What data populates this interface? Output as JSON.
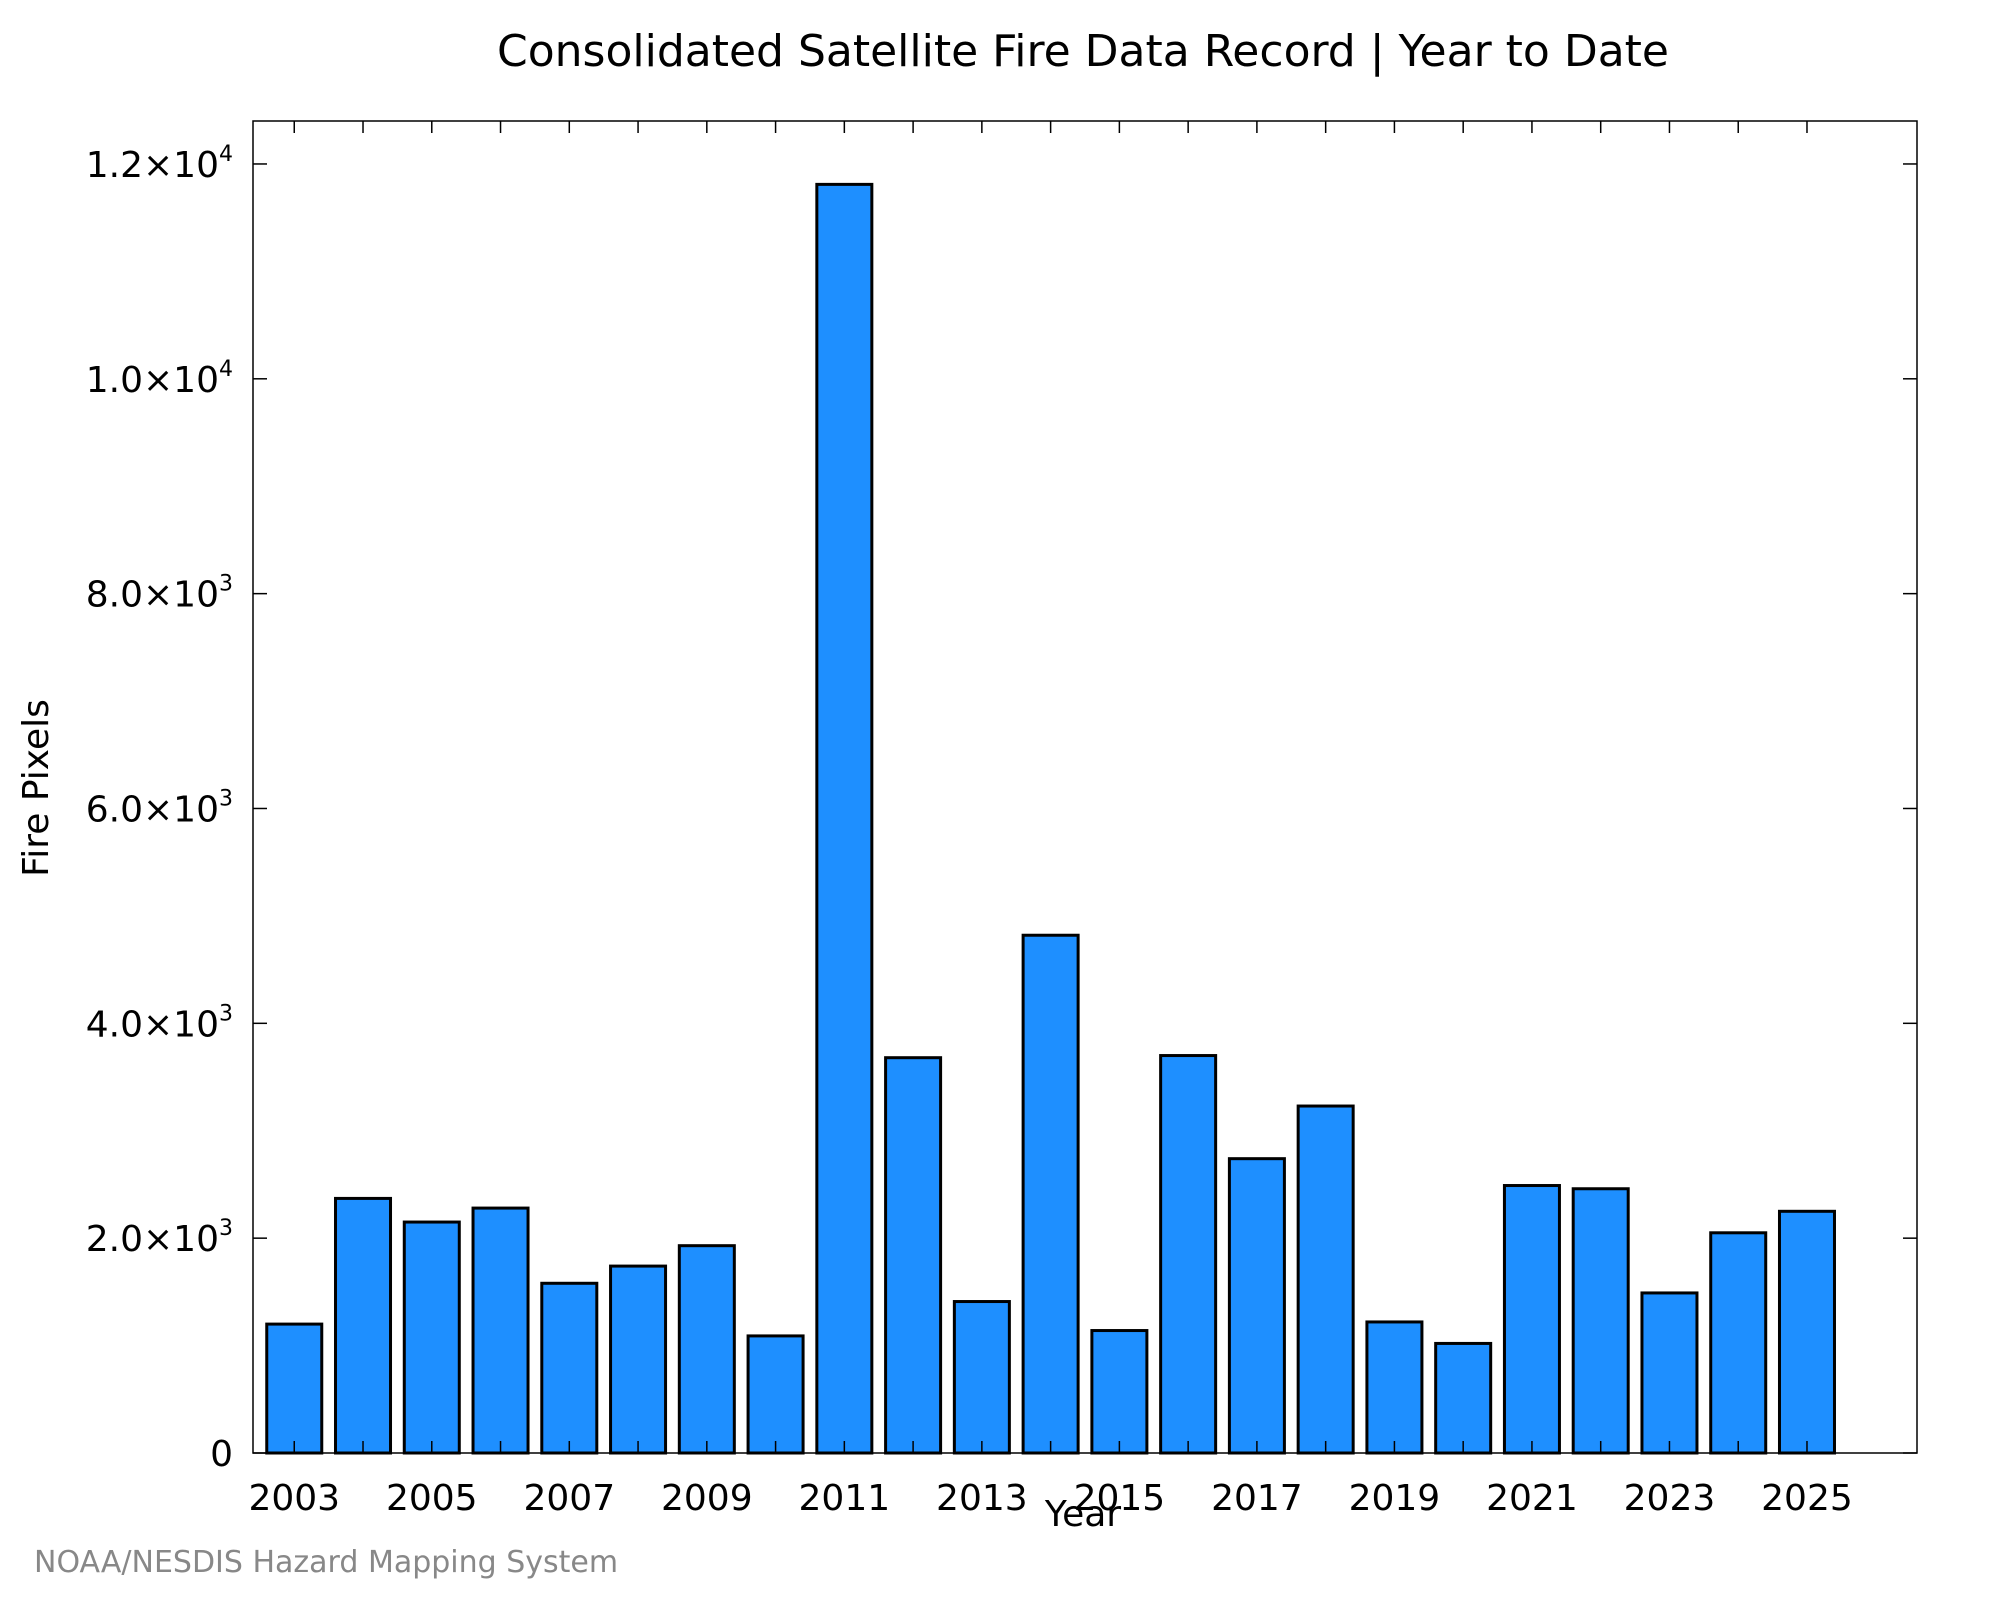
{
  "chart_data": {
    "type": "bar",
    "title": "Consolidated Satellite Fire Data Record | Year to Date",
    "xlabel": "Year",
    "ylabel": "Fire Pixels",
    "categories": [
      "2003",
      "2004",
      "2005",
      "2006",
      "2007",
      "2008",
      "2009",
      "2010",
      "2011",
      "2012",
      "2013",
      "2014",
      "2015",
      "2016",
      "2017",
      "2018",
      "2019",
      "2020",
      "2021",
      "2022",
      "2023",
      "2024",
      "2025"
    ],
    "values": [
      1200,
      2370,
      2150,
      2280,
      1580,
      1740,
      1930,
      1090,
      11810,
      3680,
      1410,
      4820,
      1140,
      3700,
      2740,
      3230,
      1220,
      1020,
      2490,
      2460,
      1490,
      2050,
      2250
    ],
    "x_tick_labels": [
      "2003",
      "2005",
      "2007",
      "2009",
      "2011",
      "2013",
      "2015",
      "2017",
      "2019",
      "2021",
      "2023",
      "2025"
    ],
    "y_ticks": [
      {
        "value": 0,
        "mantissa": "0",
        "exponent": ""
      },
      {
        "value": 2000,
        "mantissa": "2.0×10",
        "exponent": "3"
      },
      {
        "value": 4000,
        "mantissa": "4.0×10",
        "exponent": "3"
      },
      {
        "value": 6000,
        "mantissa": "6.0×10",
        "exponent": "3"
      },
      {
        "value": 8000,
        "mantissa": "8.0×10",
        "exponent": "3"
      },
      {
        "value": 10000,
        "mantissa": "1.0×10",
        "exponent": "4"
      },
      {
        "value": 12000,
        "mantissa": "1.2×10",
        "exponent": "4"
      }
    ],
    "ylim": [
      0,
      12400
    ],
    "xlim": [
      2002.4,
      2026.6
    ],
    "bar_color": "#1E8FFF",
    "bar_edge_color": "#000000",
    "grid": false,
    "legend": "none"
  },
  "credit": "NOAA/NESDIS Hazard Mapping System"
}
